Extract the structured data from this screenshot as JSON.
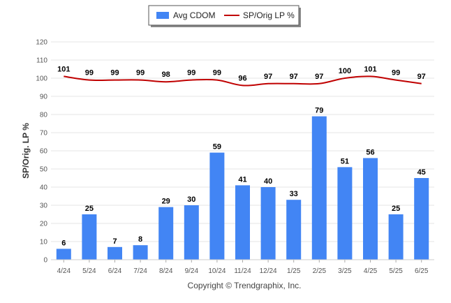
{
  "chart_data": {
    "type": "bar",
    "categories": [
      "4/24",
      "5/24",
      "6/24",
      "7/24",
      "8/24",
      "9/24",
      "10/24",
      "11/24",
      "12/24",
      "1/25",
      "2/25",
      "3/25",
      "4/25",
      "5/25",
      "6/25"
    ],
    "series": [
      {
        "name": "Avg CDOM",
        "type": "bar",
        "color": "#4285f4",
        "values": [
          6,
          25,
          7,
          8,
          29,
          30,
          59,
          41,
          40,
          33,
          79,
          51,
          56,
          25,
          45
        ]
      },
      {
        "name": "SP/Orig LP %",
        "type": "line",
        "color": "#c00000",
        "values": [
          101,
          99,
          99,
          99,
          98,
          99,
          99,
          96,
          97,
          97,
          97,
          100,
          101,
          99,
          97
        ]
      }
    ],
    "ylabel": "SP/Orig. LP %",
    "xlabel": "",
    "ylim": [
      0,
      120
    ],
    "yticks": [
      0,
      10,
      20,
      30,
      40,
      50,
      60,
      70,
      80,
      90,
      100,
      110,
      120
    ],
    "grid": true,
    "legend_position": "top-center"
  },
  "footer": {
    "copyright": "Copyright © Trendgraphix, Inc."
  }
}
